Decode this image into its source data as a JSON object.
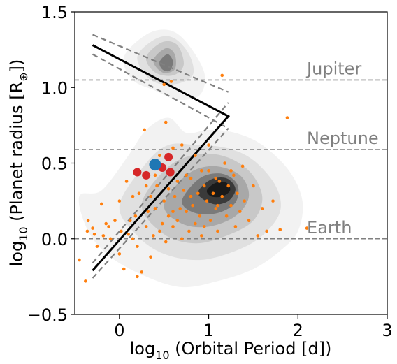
{
  "chart_data": {
    "type": "scatter",
    "xlabel_main": "log",
    "xlabel_sub": "10",
    "xlabel_rest": " (Orbital Period [d])",
    "ylabel_main": "log",
    "ylabel_sub": "10",
    "ylabel_rest": " (Planet radius [R",
    "ylabel_symbol": "⊕",
    "ylabel_end": "])",
    "xlim": [
      -0.5,
      3.0
    ],
    "ylim": [
      -0.5,
      1.5
    ],
    "xticks": [
      0,
      1,
      2,
      3
    ],
    "xtick_labels": [
      "0",
      "1",
      "2",
      "3"
    ],
    "yticks": [
      -0.5,
      0.0,
      0.5,
      1.0,
      1.5
    ],
    "ytick_labels": [
      "−0.5",
      "0.0",
      "0.5",
      "1.0",
      "1.5"
    ],
    "reference_lines": [
      {
        "label": "Jupiter",
        "y": 1.05
      },
      {
        "label": "Neptune",
        "y": 0.59
      },
      {
        "label": "Earth",
        "y": 0.0
      }
    ],
    "ref_label_x": 2.1,
    "valley_boundary": {
      "solid": [
        [
          -0.3,
          1.28
        ],
        [
          1.22,
          0.81
        ],
        [
          -0.3,
          -0.21
        ]
      ],
      "dashed_upper": [
        [
          -0.3,
          1.35
        ],
        [
          1.22,
          0.97
        ]
      ],
      "dashed_lower": [
        [
          -0.3,
          1.22
        ],
        [
          1.22,
          0.73
        ]
      ],
      "dashed_left": [
        [
          -0.3,
          -0.26
        ],
        [
          1.22,
          0.73
        ]
      ],
      "dashed_right": [
        [
          -0.3,
          -0.16
        ],
        [
          1.22,
          0.9
        ]
      ]
    },
    "density_contours": [
      {
        "name": "level-1",
        "color": "#f2f2f2",
        "polys": [
          [
            [
              -0.45,
              0.28
            ],
            [
              -0.2,
              0.32
            ],
            [
              0.1,
              0.55
            ],
            [
              0.3,
              0.72
            ],
            [
              0.55,
              0.8
            ],
            [
              0.75,
              0.7
            ],
            [
              1.0,
              0.72
            ],
            [
              1.3,
              0.7
            ],
            [
              1.6,
              0.62
            ],
            [
              1.9,
              0.45
            ],
            [
              2.05,
              0.25
            ],
            [
              2.0,
              0.05
            ],
            [
              1.8,
              -0.08
            ],
            [
              1.5,
              -0.2
            ],
            [
              1.1,
              -0.28
            ],
            [
              0.7,
              -0.32
            ],
            [
              0.3,
              -0.25
            ],
            [
              -0.1,
              -0.12
            ],
            [
              -0.35,
              0.05
            ]
          ],
          [
            [
              0.05,
              1.2
            ],
            [
              0.3,
              1.35
            ],
            [
              0.55,
              1.38
            ],
            [
              0.75,
              1.3
            ],
            [
              0.95,
              1.1
            ],
            [
              0.9,
              0.95
            ],
            [
              0.65,
              0.92
            ],
            [
              0.4,
              0.98
            ],
            [
              0.15,
              1.05
            ]
          ]
        ]
      },
      {
        "name": "level-2",
        "color": "#e0e0e0",
        "polys": [
          [
            [
              0.0,
              0.22
            ],
            [
              0.3,
              0.5
            ],
            [
              0.55,
              0.62
            ],
            [
              0.85,
              0.62
            ],
            [
              1.2,
              0.6
            ],
            [
              1.5,
              0.52
            ],
            [
              1.75,
              0.35
            ],
            [
              1.8,
              0.18
            ],
            [
              1.6,
              0.02
            ],
            [
              1.3,
              -0.08
            ],
            [
              0.9,
              -0.14
            ],
            [
              0.5,
              -0.1
            ],
            [
              0.2,
              0.02
            ]
          ],
          [
            [
              0.2,
              1.2
            ],
            [
              0.4,
              1.32
            ],
            [
              0.6,
              1.33
            ],
            [
              0.78,
              1.22
            ],
            [
              0.82,
              1.08
            ],
            [
              0.6,
              1.02
            ],
            [
              0.35,
              1.05
            ]
          ]
        ]
      },
      {
        "name": "level-3",
        "color": "#c8c8c8",
        "polys": [
          [
            [
              0.25,
              0.22
            ],
            [
              0.5,
              0.45
            ],
            [
              0.8,
              0.55
            ],
            [
              1.15,
              0.55
            ],
            [
              1.45,
              0.45
            ],
            [
              1.6,
              0.28
            ],
            [
              1.5,
              0.12
            ],
            [
              1.2,
              0.02
            ],
            [
              0.85,
              -0.03
            ],
            [
              0.5,
              0.03
            ]
          ],
          [
            [
              0.3,
              1.2
            ],
            [
              0.48,
              1.3
            ],
            [
              0.65,
              1.28
            ],
            [
              0.72,
              1.15
            ],
            [
              0.6,
              1.08
            ],
            [
              0.4,
              1.1
            ]
          ]
        ]
      },
      {
        "name": "level-4",
        "color": "#a8a8a8",
        "polys": [
          [
            [
              0.5,
              0.22
            ],
            [
              0.75,
              0.42
            ],
            [
              1.05,
              0.48
            ],
            [
              1.35,
              0.42
            ],
            [
              1.45,
              0.28
            ],
            [
              1.3,
              0.15
            ],
            [
              1.0,
              0.08
            ],
            [
              0.7,
              0.1
            ]
          ],
          [
            [
              0.38,
              1.18
            ],
            [
              0.52,
              1.26
            ],
            [
              0.62,
              1.22
            ],
            [
              0.62,
              1.12
            ],
            [
              0.48,
              1.1
            ]
          ]
        ]
      },
      {
        "name": "level-5",
        "color": "#7a7a7a",
        "polys": [
          [
            [
              0.7,
              0.25
            ],
            [
              0.9,
              0.4
            ],
            [
              1.15,
              0.43
            ],
            [
              1.32,
              0.36
            ],
            [
              1.3,
              0.24
            ],
            [
              1.1,
              0.17
            ],
            [
              0.85,
              0.17
            ]
          ],
          [
            [
              0.45,
              1.17
            ],
            [
              0.54,
              1.22
            ],
            [
              0.6,
              1.17
            ],
            [
              0.56,
              1.11
            ],
            [
              0.48,
              1.12
            ]
          ]
        ]
      },
      {
        "name": "level-6",
        "color": "#3a3a3a",
        "polys": [
          [
            [
              0.88,
              0.3
            ],
            [
              1.02,
              0.39
            ],
            [
              1.2,
              0.4
            ],
            [
              1.3,
              0.33
            ],
            [
              1.22,
              0.25
            ],
            [
              1.05,
              0.23
            ]
          ]
        ]
      },
      {
        "name": "level-7",
        "color": "#1a1a1a",
        "polys": [
          [
            [
              0.98,
              0.32
            ],
            [
              1.08,
              0.37
            ],
            [
              1.2,
              0.37
            ],
            [
              1.24,
              0.32
            ],
            [
              1.15,
              0.28
            ],
            [
              1.03,
              0.28
            ]
          ]
        ]
      }
    ],
    "series": [
      {
        "color": "#ff7f0e",
        "values": [
          [
            -0.45,
            -0.14
          ],
          [
            -0.38,
            -0.28
          ],
          [
            -0.36,
            0.05
          ],
          [
            -0.35,
            0.12
          ],
          [
            -0.3,
            0.07
          ],
          [
            -0.25,
            -0.05
          ],
          [
            -0.2,
            0.23
          ],
          [
            -0.18,
            0.02
          ],
          [
            -0.15,
            0.1
          ],
          [
            -0.12,
            0.08
          ],
          [
            -0.1,
            0.0
          ],
          [
            -0.05,
            0.12
          ],
          [
            0.0,
            -0.1
          ],
          [
            0.0,
            0.25
          ],
          [
            0.02,
            0.05
          ],
          [
            0.05,
            -0.2
          ],
          [
            0.08,
            0.38
          ],
          [
            0.1,
            0.03
          ],
          [
            0.12,
            0.12
          ],
          [
            0.15,
            0.0
          ],
          [
            0.18,
            0.15
          ],
          [
            0.2,
            -0.05
          ],
          [
            0.22,
            0.3
          ],
          [
            0.25,
            -0.22
          ],
          [
            0.28,
            0.72
          ],
          [
            0.3,
            0.08
          ],
          [
            0.32,
            0.18
          ],
          [
            0.35,
            -0.12
          ],
          [
            0.38,
            0.02
          ],
          [
            0.4,
            0.2
          ],
          [
            0.42,
            0.35
          ],
          [
            0.45,
            0.05
          ],
          [
            0.48,
            0.1
          ],
          [
            0.5,
            0.25
          ],
          [
            0.52,
            -0.02
          ],
          [
            0.55,
            0.15
          ],
          [
            0.58,
            1.04
          ],
          [
            0.6,
            0.08
          ],
          [
            0.62,
            0.28
          ],
          [
            0.65,
            0.12
          ],
          [
            0.68,
            0.2
          ],
          [
            0.7,
            0.0
          ],
          [
            0.72,
            0.32
          ],
          [
            0.75,
            0.18
          ],
          [
            0.78,
            0.05
          ],
          [
            0.8,
            0.4
          ],
          [
            0.82,
            0.22
          ],
          [
            0.85,
            0.1
          ],
          [
            0.88,
            0.3
          ],
          [
            0.9,
            0.15
          ],
          [
            0.92,
            0.02
          ],
          [
            0.95,
            0.35
          ],
          [
            0.98,
            0.25
          ],
          [
            1.0,
            0.45
          ],
          [
            1.02,
            0.12
          ],
          [
            1.05,
            0.3
          ],
          [
            1.08,
            0.2
          ],
          [
            1.1,
            0.05
          ],
          [
            1.12,
            0.38
          ],
          [
            1.15,
            0.28
          ],
          [
            1.18,
            0.5
          ],
          [
            1.2,
            0.15
          ],
          [
            1.22,
            0.35
          ],
          [
            1.25,
            0.22
          ],
          [
            1.28,
            0.42
          ],
          [
            1.3,
            0.08
          ],
          [
            1.32,
            0.3
          ],
          [
            1.35,
            0.18
          ],
          [
            1.38,
            0.48
          ],
          [
            1.4,
            0.25
          ],
          [
            1.45,
            0.12
          ],
          [
            1.5,
            0.35
          ],
          [
            1.55,
            0.02
          ],
          [
            1.6,
            0.2
          ],
          [
            1.65,
            0.05
          ],
          [
            1.72,
            0.25
          ],
          [
            1.8,
            0.06
          ],
          [
            1.88,
            0.8
          ],
          [
            2.1,
            0.07
          ],
          [
            0.52,
            0.77
          ],
          [
            0.45,
            0.55
          ],
          [
            0.6,
            0.6
          ],
          [
            0.7,
            0.62
          ],
          [
            0.85,
            0.55
          ],
          [
            1.0,
            0.62
          ],
          [
            1.15,
            1.08
          ],
          [
            0.35,
            0.28
          ],
          [
            0.55,
            0.33
          ],
          [
            0.65,
            0.38
          ],
          [
            0.75,
            0.42
          ],
          [
            0.92,
            0.45
          ],
          [
            1.08,
            0.4
          ],
          [
            1.25,
            0.45
          ],
          [
            0.4,
            0.42
          ],
          [
            0.3,
            0.35
          ],
          [
            -0.28,
            0.03
          ],
          [
            0.15,
            0.28
          ],
          [
            0.6,
            0.18
          ],
          [
            0.8,
            0.28
          ],
          [
            0.95,
            0.08
          ],
          [
            1.1,
            0.22
          ],
          [
            0.5,
            1.02
          ],
          [
            0.2,
            -0.25
          ]
        ]
      }
    ],
    "highlight_red": [
      [
        0.2,
        0.44
      ],
      [
        0.3,
        0.42
      ],
      [
        0.48,
        0.47
      ],
      [
        0.55,
        0.54
      ],
      [
        0.57,
        0.44
      ]
    ],
    "highlight_red_color": "#d62728",
    "highlight_blue": [
      [
        0.4,
        0.49
      ]
    ],
    "highlight_blue_color": "#1f77b4"
  }
}
